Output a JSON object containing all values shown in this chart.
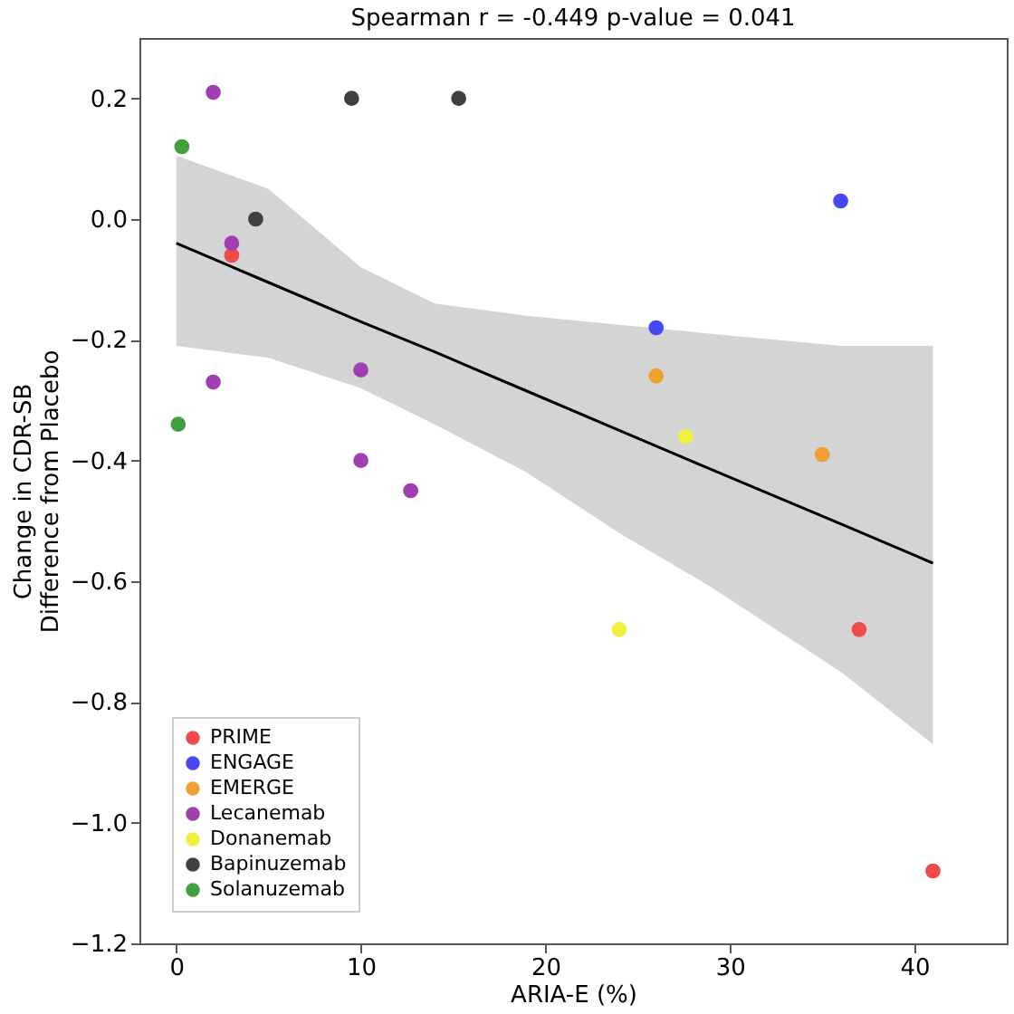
{
  "chart_data": {
    "type": "scatter",
    "title": "Spearman r = -0.449   p-value = 0.041",
    "xlabel": "ARIA-E (%)",
    "ylabel": "Change in CDR-SB\nDifference from Placebo",
    "xlim": [
      -2,
      45
    ],
    "ylim": [
      -1.2,
      0.3
    ],
    "xticks": [
      0,
      10,
      20,
      30,
      40
    ],
    "yticks": [
      {
        "value": -1.2,
        "label": "−1.2"
      },
      {
        "value": -1.0,
        "label": "−1.0"
      },
      {
        "value": -0.8,
        "label": "−0.8"
      },
      {
        "value": -0.6,
        "label": "−0.6"
      },
      {
        "value": -0.4,
        "label": "−0.4"
      },
      {
        "value": -0.2,
        "label": "−0.2"
      },
      {
        "value": 0,
        "label": "0.0"
      },
      0.2
    ],
    "grid": false,
    "legend": "bottom left",
    "marker": "circle",
    "series": [
      {
        "name": "PRIME",
        "color": "#f04a4a",
        "x": [
          3.0,
          37.0,
          41.0
        ],
        "values": [
          -0.06,
          -0.68,
          -1.08
        ]
      },
      {
        "name": "ENGAGE",
        "color": "#4848f0",
        "x": [
          26.0,
          36.0
        ],
        "values": [
          -0.18,
          0.03
        ]
      },
      {
        "name": "EMERGE",
        "color": "#f0a030",
        "x": [
          26.0,
          35.0
        ],
        "values": [
          -0.26,
          -0.39
        ]
      },
      {
        "name": "Lecanemab",
        "color": "#a040b0",
        "x": [
          2.0,
          3.0,
          2.0,
          10.0,
          10.0,
          12.7
        ],
        "values": [
          0.21,
          -0.04,
          -0.27,
          -0.25,
          -0.4,
          -0.45
        ]
      },
      {
        "name": "Donanemab",
        "color": "#f0f040",
        "x": [
          27.6,
          24.0
        ],
        "values": [
          -0.36,
          -0.68
        ]
      },
      {
        "name": "Bapinuzemab",
        "color": "#404040",
        "x": [
          9.5,
          15.3,
          4.3
        ],
        "values": [
          0.2,
          0.2,
          0.0
        ]
      },
      {
        "name": "Solanuzemab",
        "color": "#40a040",
        "x": [
          0.3,
          0.1
        ],
        "values": [
          0.12,
          -0.34
        ]
      },
      {
        "type": "line",
        "marker": "none",
        "color": "#000000",
        "x": [
          0,
          5,
          10,
          14,
          19,
          24,
          29,
          36,
          41
        ],
        "values": [
          -0.04,
          -0.105,
          -0.17,
          -0.22,
          -0.285,
          -0.35,
          -0.415,
          -0.505,
          -0.57
        ],
        "lower": [
          -0.21,
          -0.23,
          -0.28,
          -0.34,
          -0.42,
          -0.52,
          -0.61,
          -0.75,
          -0.87
        ],
        "upper": [
          0.105,
          0.05,
          -0.08,
          -0.14,
          -0.16,
          -0.175,
          -0.19,
          -0.21,
          -0.21
        ]
      }
    ]
  }
}
